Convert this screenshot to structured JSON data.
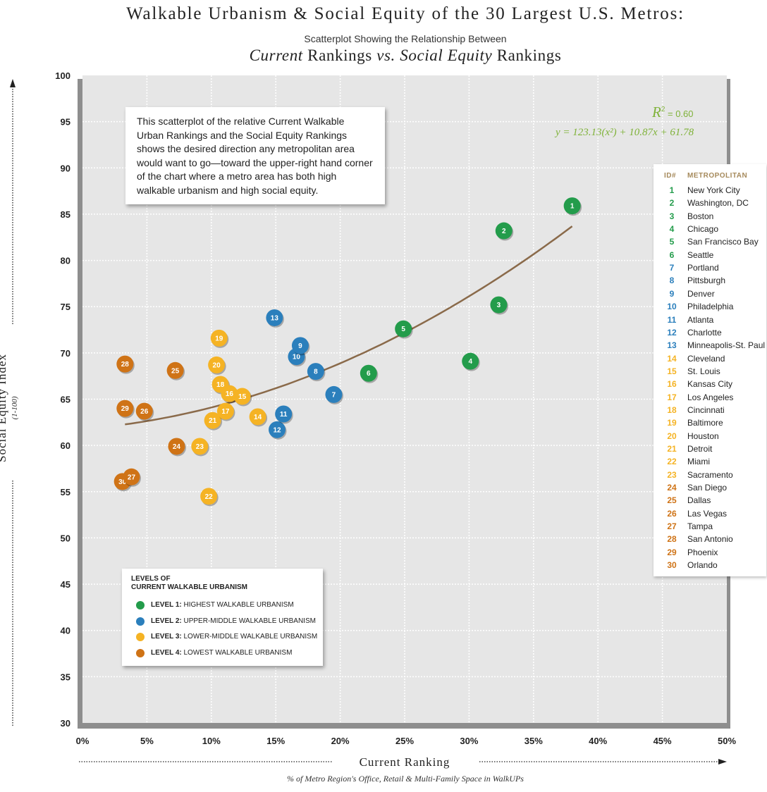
{
  "header": {
    "title": "Walkable Urbanism & Social Equity of the 30 Largest U.S. Metros:",
    "subtitle": "Scatterplot Showing the Relationship Between",
    "subtitle2_part1": "Current",
    "subtitle2_part2": " Rankings ",
    "subtitle2_part3": "vs.",
    "subtitle2_part4": " ",
    "subtitle2_part5": "Social Equity",
    "subtitle2_part6": " Rankings"
  },
  "note": "This scatterplot of the relative Current Walkable Urban Rankings and the Social Equity Rankings shows the desired direction any metropolitan area would want to go—toward the upper-right hand corner of the chart where a metro area has both high walkable urbanism and high social equity.",
  "regression": {
    "r2_symbol": "R",
    "r2_exp": "2",
    "r2_value": " = 0.60",
    "equation": "y = 123.13(x²) + 10.87x + 61.78",
    "color": "#7fb239"
  },
  "levels_legend": {
    "title_line1": "LEVELS OF",
    "title_line2": "CURRENT WALKABLE URBANISM",
    "items": [
      {
        "bold": "LEVEL 1:",
        "text": " HIGHEST WALKABLE URBANISM",
        "color": "#239c4b"
      },
      {
        "bold": "LEVEL 2:",
        "text": " UPPER-MIDDLE WALKABLE URBANISM",
        "color": "#2b7fbc"
      },
      {
        "bold": "LEVEL 3:",
        "text": " LOWER-MIDDLE WALKABLE URBANISM",
        "color": "#f5b324"
      },
      {
        "bold": "LEVEL 4:",
        "text": " LOWEST WALKABLE URBANISM",
        "color": "#cf7316"
      }
    ]
  },
  "metro_legend": {
    "id_header": "ID#",
    "name_header": "METROPOLITAN"
  },
  "chart_data": {
    "type": "scatter",
    "title": "Walkable Urbanism & Social Equity of the 30 Largest U.S. Metros:",
    "xlabel": "Current Ranking",
    "xlabel_sub": "% of Metro Region's Office, Retail & Multi-Family Space in WalkUPs",
    "ylabel": "Social Equity Index",
    "ylabel_sub": "(1-100)",
    "xlim": [
      0,
      0.5
    ],
    "ylim": [
      30,
      100
    ],
    "x_ticks": [
      "0%",
      "5%",
      "10%",
      "15%",
      "20%",
      "25%",
      "30%",
      "35%",
      "40%",
      "45%",
      "50%"
    ],
    "y_ticks": [
      "30",
      "35",
      "40",
      "45",
      "50",
      "55",
      "60",
      "65",
      "70",
      "75",
      "80",
      "85",
      "90",
      "95",
      "100"
    ],
    "grid": true,
    "trendline": {
      "a": 123.13,
      "b": 10.87,
      "c": 61.78,
      "x_range": [
        0.033,
        0.38
      ],
      "color": "#8a6a4a"
    },
    "level_colors": {
      "1": "#239c4b",
      "2": "#2b7fbc",
      "3": "#f5b324",
      "4": "#cf7316"
    },
    "points": [
      {
        "id": 1,
        "name": "New York City",
        "level": 1,
        "x": 0.38,
        "y": 85.9
      },
      {
        "id": 2,
        "name": "Washington, DC",
        "level": 1,
        "x": 0.327,
        "y": 83.2
      },
      {
        "id": 3,
        "name": "Boston",
        "level": 1,
        "x": 0.323,
        "y": 75.2
      },
      {
        "id": 4,
        "name": "Chicago",
        "level": 1,
        "x": 0.301,
        "y": 69.1
      },
      {
        "id": 5,
        "name": "San Francisco Bay",
        "level": 1,
        "x": 0.249,
        "y": 72.6
      },
      {
        "id": 6,
        "name": "Seattle",
        "level": 1,
        "x": 0.222,
        "y": 67.8
      },
      {
        "id": 7,
        "name": "Portland",
        "level": 2,
        "x": 0.195,
        "y": 65.5
      },
      {
        "id": 8,
        "name": "Pittsburgh",
        "level": 2,
        "x": 0.181,
        "y": 68.0
      },
      {
        "id": 9,
        "name": "Denver",
        "level": 2,
        "x": 0.169,
        "y": 70.8
      },
      {
        "id": 10,
        "name": "Philadelphia",
        "level": 2,
        "x": 0.166,
        "y": 69.6
      },
      {
        "id": 11,
        "name": "Atlanta",
        "level": 2,
        "x": 0.156,
        "y": 63.4
      },
      {
        "id": 12,
        "name": "Charlotte",
        "level": 2,
        "x": 0.151,
        "y": 61.7
      },
      {
        "id": 13,
        "name": "Minneapolis-St. Paul",
        "level": 2,
        "x": 0.149,
        "y": 73.8
      },
      {
        "id": 14,
        "name": "Cleveland",
        "level": 3,
        "x": 0.136,
        "y": 63.1
      },
      {
        "id": 15,
        "name": "St. Louis",
        "level": 3,
        "x": 0.124,
        "y": 65.3
      },
      {
        "id": 16,
        "name": "Kansas City",
        "level": 3,
        "x": 0.114,
        "y": 65.6
      },
      {
        "id": 17,
        "name": "Los Angeles",
        "level": 3,
        "x": 0.111,
        "y": 63.7
      },
      {
        "id": 18,
        "name": "Cincinnati",
        "level": 3,
        "x": 0.107,
        "y": 66.6
      },
      {
        "id": 19,
        "name": "Baltimore",
        "level": 3,
        "x": 0.106,
        "y": 71.6
      },
      {
        "id": 20,
        "name": "Houston",
        "level": 3,
        "x": 0.104,
        "y": 68.7
      },
      {
        "id": 21,
        "name": "Detroit",
        "level": 3,
        "x": 0.101,
        "y": 62.7
      },
      {
        "id": 22,
        "name": "Miami",
        "level": 3,
        "x": 0.098,
        "y": 54.5
      },
      {
        "id": 23,
        "name": "Sacramento",
        "level": 3,
        "x": 0.091,
        "y": 59.9
      },
      {
        "id": 24,
        "name": "San Diego",
        "level": 4,
        "x": 0.073,
        "y": 59.9
      },
      {
        "id": 25,
        "name": "Dallas",
        "level": 4,
        "x": 0.072,
        "y": 68.1
      },
      {
        "id": 26,
        "name": "Las Vegas",
        "level": 4,
        "x": 0.048,
        "y": 63.7
      },
      {
        "id": 27,
        "name": "Tampa",
        "level": 4,
        "x": 0.038,
        "y": 56.6
      },
      {
        "id": 28,
        "name": "San Antonio",
        "level": 4,
        "x": 0.033,
        "y": 68.8
      },
      {
        "id": 29,
        "name": "Phoenix",
        "level": 4,
        "x": 0.033,
        "y": 64.0
      },
      {
        "id": 30,
        "name": "Orlando",
        "level": 4,
        "x": 0.031,
        "y": 56.1
      }
    ]
  }
}
